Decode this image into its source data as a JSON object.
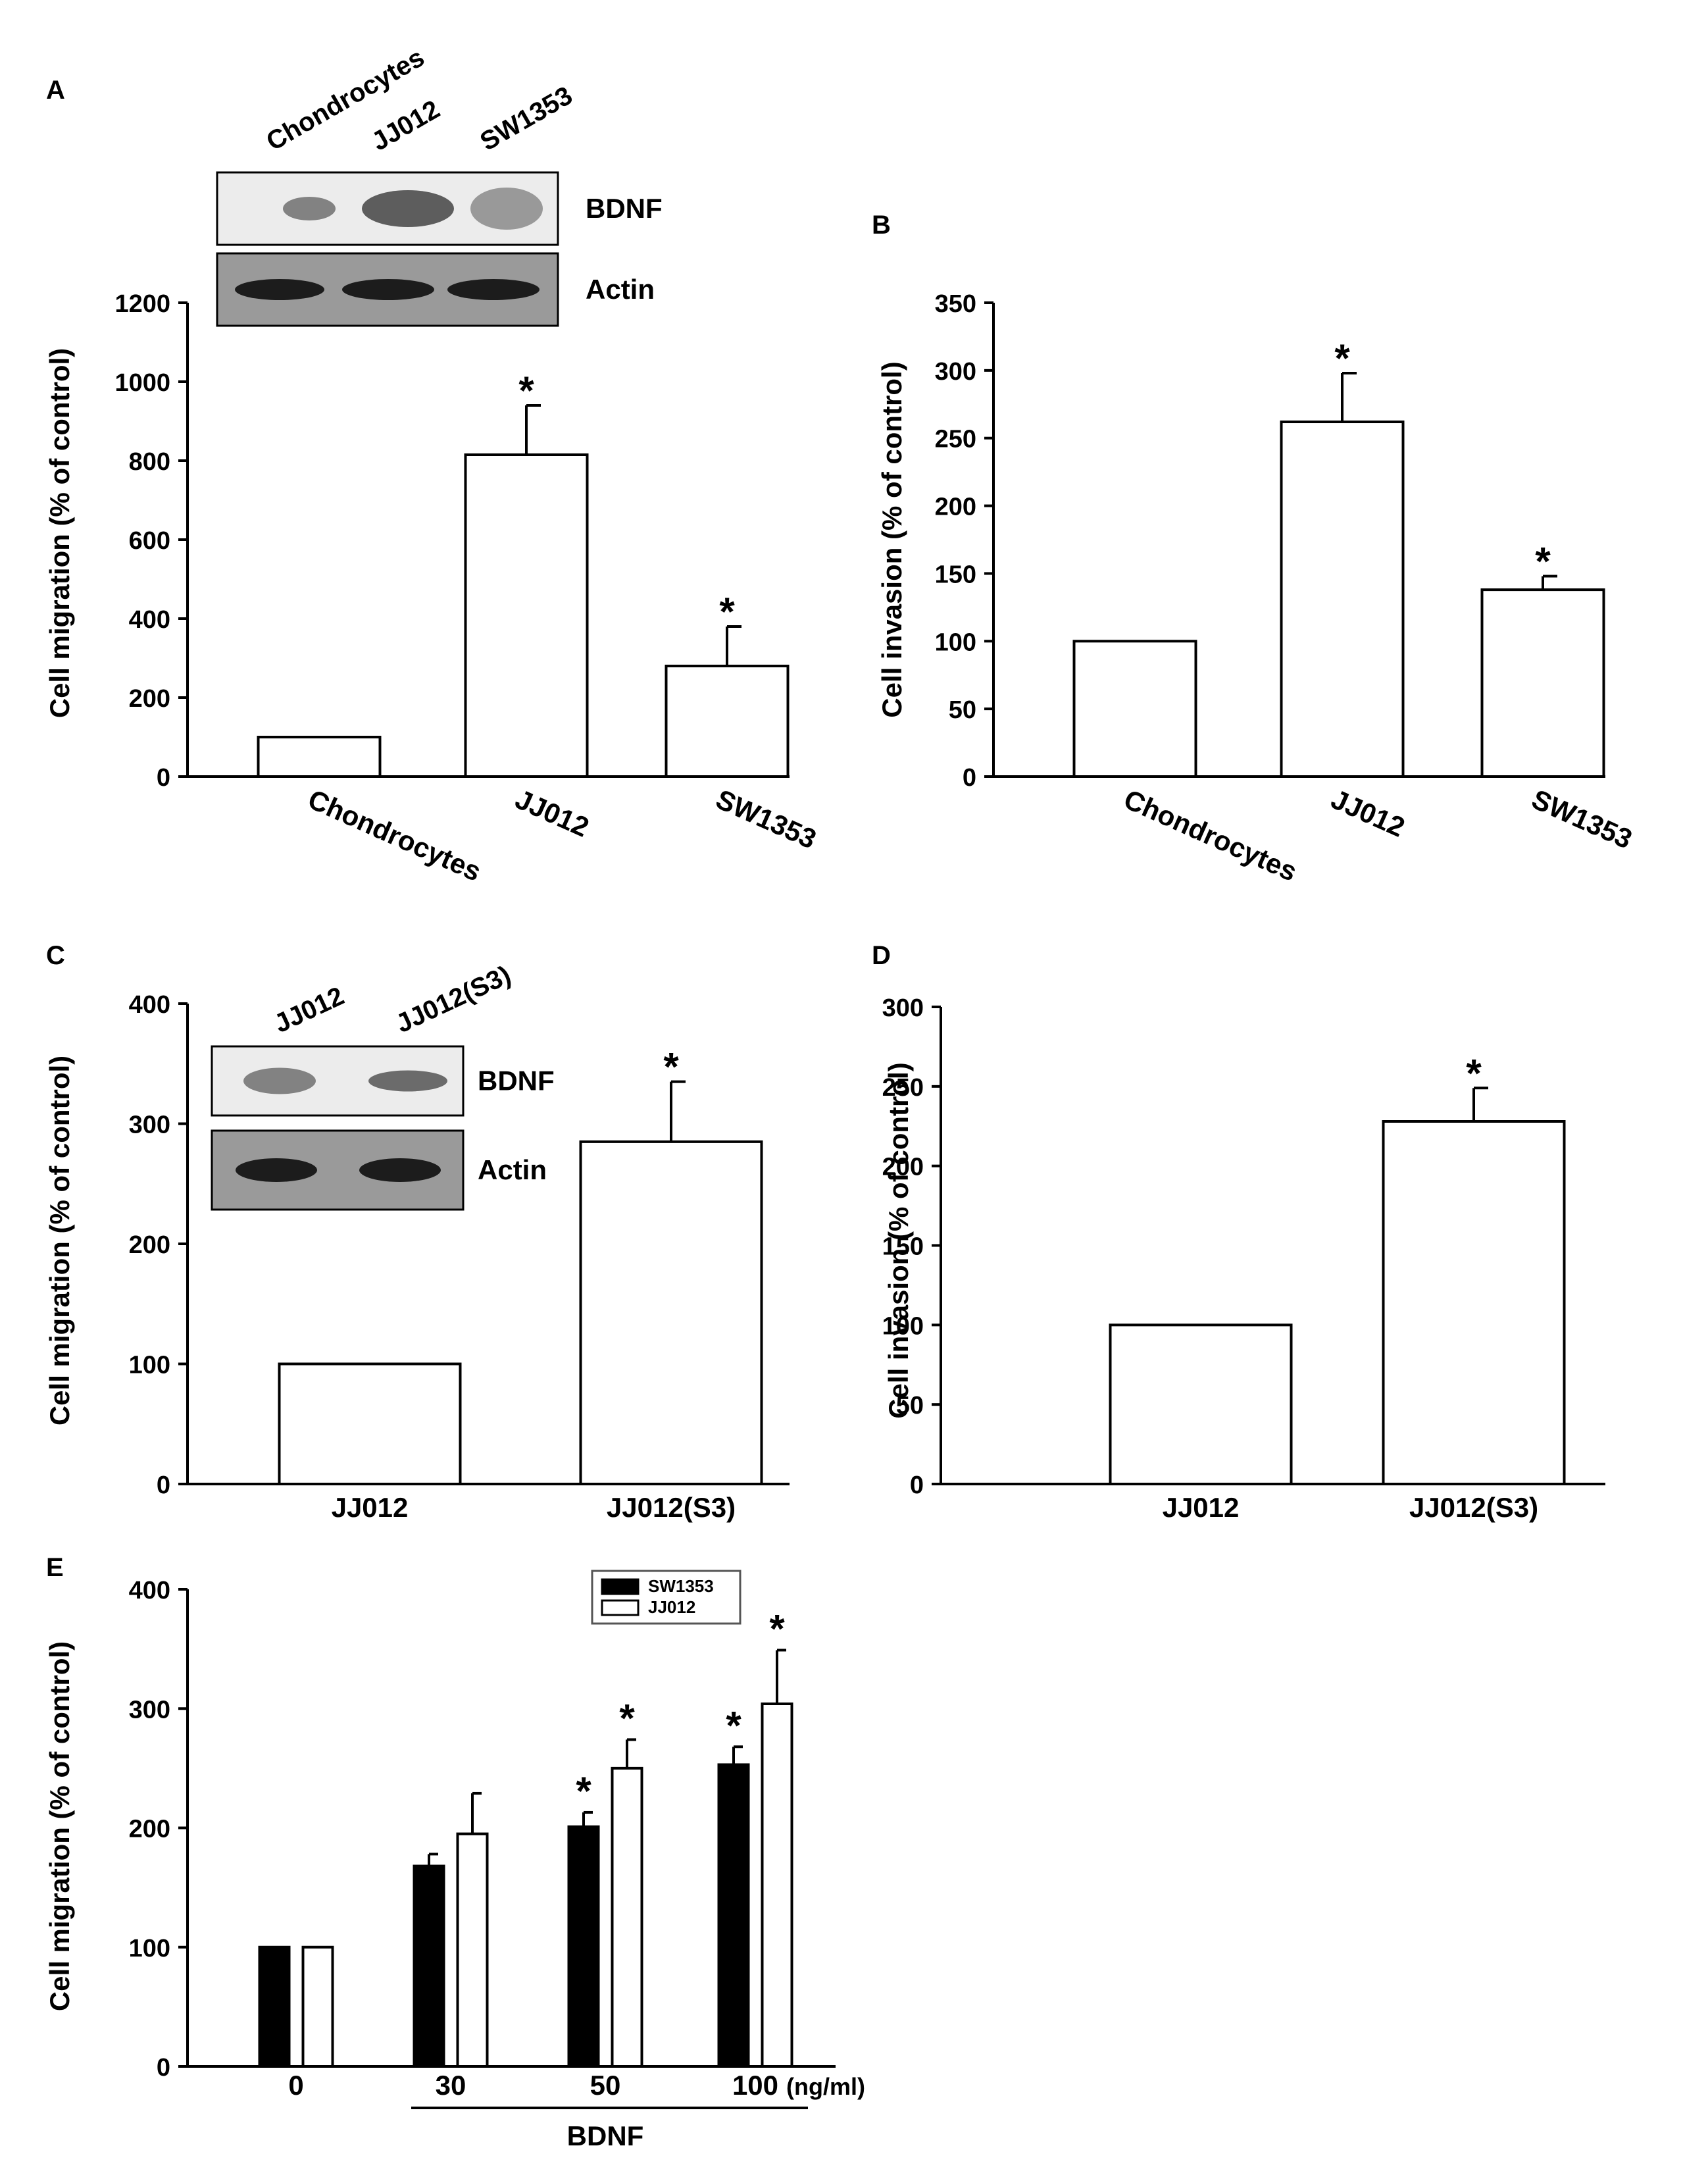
{
  "chart_data": [
    {
      "panel": "A",
      "type": "bar",
      "title": "",
      "xlabel": "",
      "ylabel": "Cell migration (% of control)",
      "ylim": [
        0,
        1200
      ],
      "yticks": [
        "0",
        "200",
        "400",
        "600",
        "800",
        "1000",
        "1200"
      ],
      "categories": [
        "Chondrocytes",
        "JJ012",
        "SW1353"
      ],
      "values": [
        100,
        815,
        280
      ],
      "errors": [
        0,
        125,
        100
      ],
      "significance": [
        "",
        "*",
        "*"
      ],
      "inset_blot": {
        "lanes": [
          "Chondrocytes",
          "JJ012",
          "SW1353"
        ],
        "rows": [
          "BDNF",
          "Actin"
        ]
      }
    },
    {
      "panel": "B",
      "type": "bar",
      "title": "",
      "xlabel": "",
      "ylabel": "Cell invasion (% of control)",
      "ylim": [
        0,
        350
      ],
      "yticks": [
        "0",
        "50",
        "100",
        "150",
        "200",
        "250",
        "300",
        "350"
      ],
      "categories": [
        "Chondrocytes",
        "JJ012",
        "SW1353"
      ],
      "values": [
        100,
        262,
        138
      ],
      "errors": [
        0,
        36,
        10
      ],
      "significance": [
        "",
        "*",
        "*"
      ]
    },
    {
      "panel": "C",
      "type": "bar",
      "title": "",
      "xlabel": "",
      "ylabel": "Cell migration (% of control)",
      "ylim": [
        0,
        400
      ],
      "yticks": [
        "0",
        "100",
        "200",
        "300",
        "400"
      ],
      "categories": [
        "JJ012",
        "JJ012(S3)"
      ],
      "values": [
        100,
        285
      ],
      "errors": [
        0,
        50
      ],
      "significance": [
        "",
        "*"
      ],
      "inset_blot": {
        "lanes": [
          "JJ012",
          "JJ012(S3)"
        ],
        "rows": [
          "BDNF",
          "Actin"
        ]
      }
    },
    {
      "panel": "D",
      "type": "bar",
      "title": "",
      "xlabel": "",
      "ylabel": "Cell invasion (% of control)",
      "ylim": [
        0,
        300
      ],
      "yticks": [
        "0",
        "50",
        "100",
        "150",
        "200",
        "250",
        "300"
      ],
      "categories": [
        "JJ012",
        "JJ012(S3)"
      ],
      "values": [
        100,
        228
      ],
      "errors": [
        0,
        21
      ],
      "significance": [
        "",
        "*"
      ]
    },
    {
      "panel": "E",
      "type": "bar",
      "title": "",
      "xlabel": "BDNF",
      "x_unit": "(ng/ml)",
      "ylabel": "Cell migration (% of control)",
      "ylim": [
        0,
        400
      ],
      "yticks": [
        "0",
        "100",
        "200",
        "300",
        "400"
      ],
      "categories": [
        "0",
        "30",
        "50",
        "100"
      ],
      "series": [
        {
          "name": "SW1353",
          "color": "#000000",
          "values": [
            100,
            168,
            201,
            253
          ],
          "errors": [
            0,
            10,
            12,
            15
          ],
          "significance": [
            "",
            "",
            "*",
            "*"
          ]
        },
        {
          "name": "JJ012",
          "color": "#ffffff",
          "values": [
            100,
            195,
            250,
            304
          ],
          "errors": [
            0,
            34,
            24,
            45
          ],
          "significance": [
            "",
            "",
            "*",
            "*"
          ]
        }
      ],
      "legend": "top-right"
    }
  ]
}
